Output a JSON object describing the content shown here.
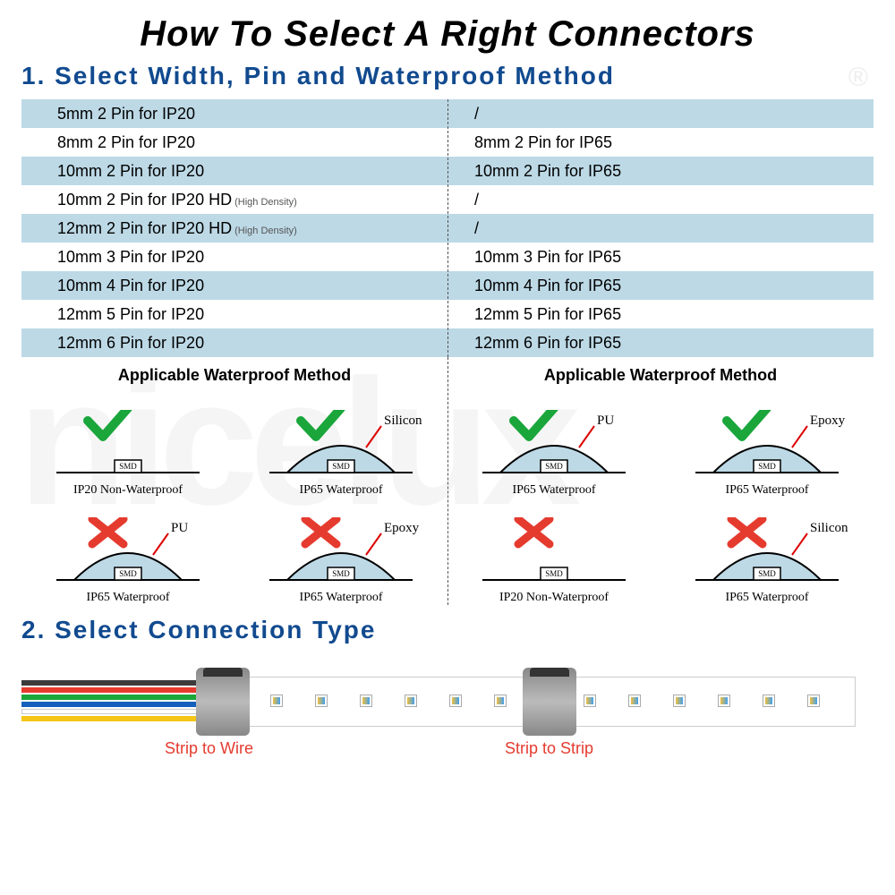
{
  "title": "How To Select A Right Connectors",
  "section1_title": "1. Select Width, Pin and Waterproof Method",
  "section2_title": "2. Select Connection Type",
  "hd_suffix": "(High Density)",
  "table": {
    "rows": [
      {
        "left": "5mm   2 Pin for IP20",
        "right": "/",
        "hd": false
      },
      {
        "left": "8mm   2 Pin for IP20",
        "right": "8mm   2 Pin for IP65",
        "hd": false
      },
      {
        "left": "10mm 2 Pin for IP20",
        "right": "10mm 2 Pin for IP65",
        "hd": false
      },
      {
        "left": "10mm 2 Pin for IP20 HD",
        "right": "/",
        "hd": true
      },
      {
        "left": "12mm 2 Pin for IP20 HD",
        "right": "/",
        "hd": true
      },
      {
        "left": "10mm 3 Pin for IP20",
        "right": "10mm 3 Pin for IP65",
        "hd": false
      },
      {
        "left": "10mm 4 Pin for IP20",
        "right": "10mm 4 Pin for IP65",
        "hd": false
      },
      {
        "left": "12mm 5 Pin for IP20",
        "right": "12mm 5 Pin for IP65",
        "hd": false
      },
      {
        "left": "12mm 6 Pin for IP20",
        "right": "12mm 6 Pin for IP65",
        "hd": false
      }
    ],
    "alt_color": "#bdd9e6"
  },
  "wp_header": "Applicable Waterproof Method",
  "waterproof": {
    "check_color": "#1aa63b",
    "cross_color": "#e53b2f",
    "dome_fill": "#bdd9e6",
    "dome_stroke": "#000000",
    "left": [
      {
        "ok": true,
        "type": "flat",
        "caption": "IP20 Non-Waterproof",
        "mat": ""
      },
      {
        "ok": true,
        "type": "dome",
        "caption": "IP65 Waterproof",
        "mat": "Silicon"
      },
      {
        "ok": false,
        "type": "dome",
        "caption": "IP65 Waterproof",
        "mat": "PU"
      },
      {
        "ok": false,
        "type": "dome",
        "caption": "IP65 Waterproof",
        "mat": "Epoxy"
      }
    ],
    "right": [
      {
        "ok": true,
        "type": "dome",
        "caption": "IP65 Waterproof",
        "mat": "PU"
      },
      {
        "ok": true,
        "type": "dome",
        "caption": "IP65 Waterproof",
        "mat": "Epoxy"
      },
      {
        "ok": false,
        "type": "flat",
        "caption": "IP20 Non-Waterproof",
        "mat": ""
      },
      {
        "ok": false,
        "type": "dome",
        "caption": "IP65 Waterproof",
        "mat": "Silicon"
      }
    ]
  },
  "connection": {
    "label1": "Strip to Wire",
    "label2": "Strip to Strip",
    "wire_colors": [
      "#3b3b3b",
      "#e53b2f",
      "#1aa63b",
      "#1560bd",
      "#ffffff",
      "#f5c518"
    ]
  },
  "smd": "SMD",
  "watermark": "nicelux",
  "reg": "®"
}
